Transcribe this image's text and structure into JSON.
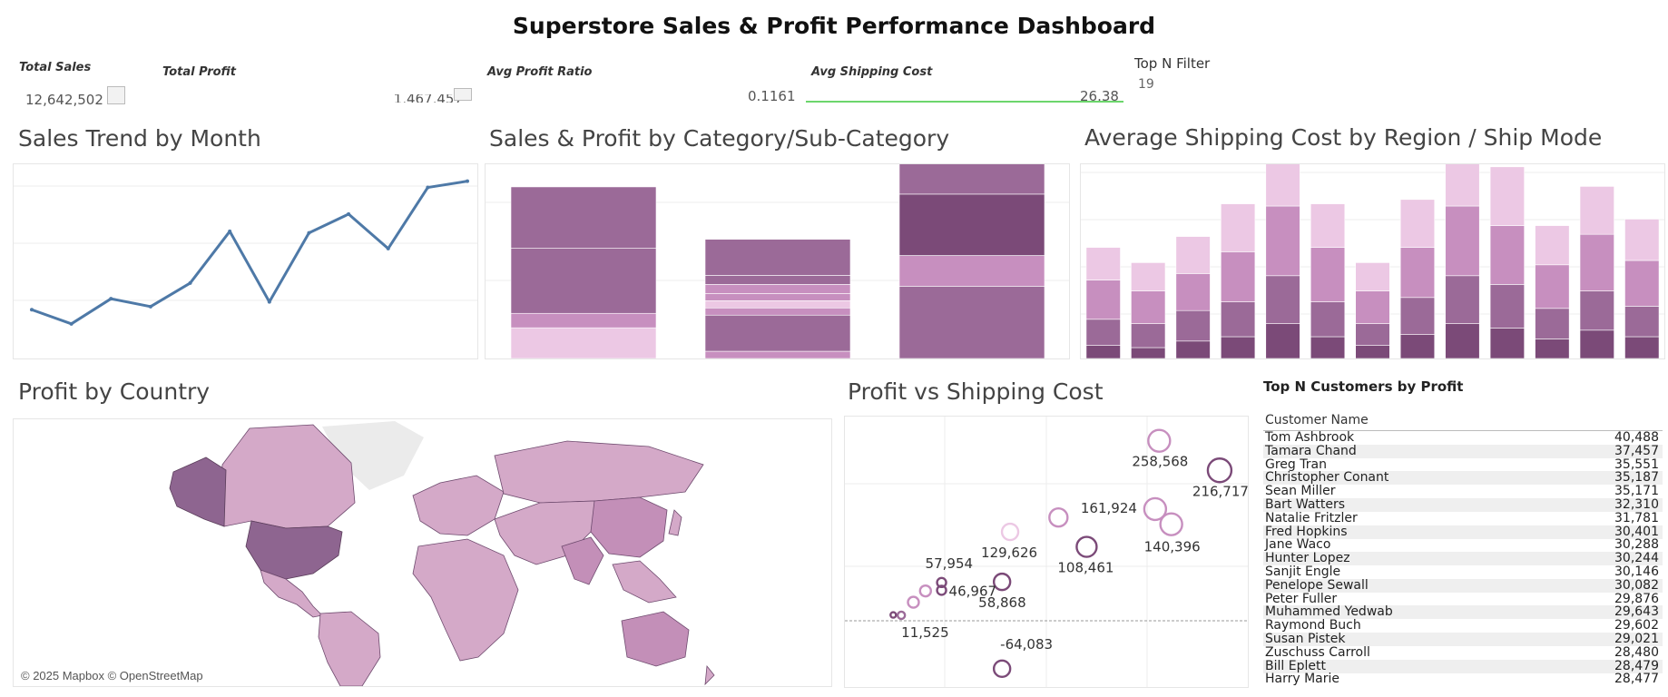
{
  "dashboard": {
    "title": "Superstore Sales & Profit Performance Dashboard"
  },
  "kpis": {
    "total_sales_label": "Total Sales",
    "total_sales_value": "12,642,502",
    "total_profit_label": "Total Profit",
    "total_profit_value": "1,467,457",
    "avg_profit_ratio_label": "Avg Profit Ratio",
    "avg_profit_ratio_value": "0.1161",
    "avg_shipping_cost_label": "Avg Shipping Cost",
    "avg_shipping_cost_value": "26.38",
    "top_n_label": "Top N Filter",
    "top_n_value": "19"
  },
  "colors": {
    "line": "#4e79a7",
    "purple_dark": "#7b4a78",
    "purple_mid": "#9b6a98",
    "purple_light": "#c78fbf",
    "purple_pale": "#ecc8e4",
    "map_default": "#d4a9c8",
    "map_us": "#8e6590",
    "kpi_sparkline": "#6cd66c"
  },
  "chart_data": [
    {
      "id": "sales_trend",
      "type": "line",
      "title": "Sales Trend by Month",
      "series": [
        {
          "values": [
            0.43,
            0.34,
            0.5,
            0.45,
            0.6,
            0.93,
            0.48,
            0.92,
            1.04,
            0.82,
            1.21,
            1.25
          ]
        }
      ]
    },
    {
      "id": "category_subcategory",
      "type": "bar",
      "title": "Sales & Profit by Category/Sub-Category",
      "categories": [
        "",
        "",
        ""
      ],
      "stacks": [
        [
          0.17,
          0.08,
          0.36,
          0.34
        ],
        [
          0.04,
          0.2,
          0.04,
          0.04,
          0.04,
          0.05,
          0.05,
          0.2
        ],
        [
          0.4,
          0.17,
          0.34,
          0.17
        ]
      ],
      "stack_shades": [
        [
          "pale",
          "light",
          "mid",
          "mid"
        ],
        [
          "light",
          "mid",
          "light",
          "pale",
          "light",
          "light",
          "mid",
          "mid"
        ],
        [
          "mid",
          "light",
          "dark",
          "mid"
        ]
      ]
    },
    {
      "id": "shipping_cost_region_mode",
      "type": "bar",
      "title": "Average Shipping Cost by Region / Ship Mode",
      "series_order": [
        "dark",
        "mid",
        "light",
        "pale"
      ],
      "values": [
        [
          6,
          12,
          18,
          15
        ],
        [
          5,
          11,
          15,
          13
        ],
        [
          8,
          14,
          17,
          17
        ],
        [
          10,
          16,
          23,
          22
        ],
        [
          16,
          22,
          32,
          31
        ],
        [
          10,
          16,
          25,
          20
        ],
        [
          6,
          10,
          15,
          13
        ],
        [
          11,
          17,
          23,
          22
        ],
        [
          16,
          22,
          32,
          38
        ],
        [
          14,
          20,
          27,
          27
        ],
        [
          9,
          14,
          20,
          18
        ],
        [
          13,
          18,
          26,
          22
        ],
        [
          10,
          14,
          21,
          19
        ]
      ]
    },
    {
      "id": "profit_vs_shipping",
      "type": "scatter",
      "title": "Profit vs Shipping Cost",
      "points": [
        {
          "x": 0.78,
          "y": 258568,
          "label": "258,568",
          "r": 12,
          "shade": "light"
        },
        {
          "x": 0.93,
          "y": 216717,
          "label": "216,717",
          "r": 13,
          "shade": "dark"
        },
        {
          "x": 0.77,
          "y": 161924,
          "label": "161,924",
          "r": 12,
          "shade": "light"
        },
        {
          "x": 0.81,
          "y": 140396,
          "label": "140,396",
          "r": 12,
          "shade": "light"
        },
        {
          "x": 0.53,
          "y": 150000,
          "label": "",
          "r": 10,
          "shade": "light"
        },
        {
          "x": 0.41,
          "y": 129626,
          "label": "129,626",
          "r": 9,
          "shade": "pale"
        },
        {
          "x": 0.6,
          "y": 108461,
          "label": "108,461",
          "r": 11,
          "shade": "dark"
        },
        {
          "x": 0.39,
          "y": 58868,
          "label": "58,868",
          "r": 9,
          "shade": "dark"
        },
        {
          "x": 0.24,
          "y": 57954,
          "label": "57,954",
          "r": 5,
          "shade": "dark"
        },
        {
          "x": 0.24,
          "y": 46967,
          "label": "46,967",
          "r": 5,
          "shade": "dark"
        },
        {
          "x": 0.2,
          "y": 46000,
          "label": "",
          "r": 6,
          "shade": "light"
        },
        {
          "x": 0.17,
          "y": 30000,
          "label": "",
          "r": 6,
          "shade": "light"
        },
        {
          "x": 0.14,
          "y": 11525,
          "label": "11,525",
          "r": 4,
          "shade": "mid"
        },
        {
          "x": 0.12,
          "y": 12000,
          "label": "",
          "r": 3,
          "shade": "dark"
        },
        {
          "x": 0.39,
          "y": -64083,
          "label": "-64,083",
          "r": 9,
          "shade": "dark"
        }
      ]
    }
  ],
  "map": {
    "title": "Profit by Country",
    "attribution": "© 2025 Mapbox © OpenStreetMap"
  },
  "top_customers": {
    "title": "Top N Customers by Profit",
    "column_header": "Customer Name",
    "rows": [
      {
        "name": "Tom Ashbrook",
        "value": "40,488"
      },
      {
        "name": "Tamara Chand",
        "value": "37,457"
      },
      {
        "name": "Greg Tran",
        "value": "35,551"
      },
      {
        "name": "Christopher Conant",
        "value": "35,187"
      },
      {
        "name": "Sean Miller",
        "value": "35,171"
      },
      {
        "name": "Bart Watters",
        "value": "32,310"
      },
      {
        "name": "Natalie Fritzler",
        "value": "31,781"
      },
      {
        "name": "Fred Hopkins",
        "value": "30,401"
      },
      {
        "name": "Jane Waco",
        "value": "30,288"
      },
      {
        "name": "Hunter Lopez",
        "value": "30,244"
      },
      {
        "name": "Sanjit Engle",
        "value": "30,146"
      },
      {
        "name": "Penelope Sewall",
        "value": "30,082"
      },
      {
        "name": "Peter Fuller",
        "value": "29,876"
      },
      {
        "name": "Muhammed Yedwab",
        "value": "29,643"
      },
      {
        "name": "Raymond Buch",
        "value": "29,602"
      },
      {
        "name": "Susan Pistek",
        "value": "29,021"
      },
      {
        "name": "Zuschuss Carroll",
        "value": "28,480"
      },
      {
        "name": "Bill Eplett",
        "value": "28,479"
      },
      {
        "name": "Harry Marie",
        "value": "28,477"
      }
    ]
  }
}
